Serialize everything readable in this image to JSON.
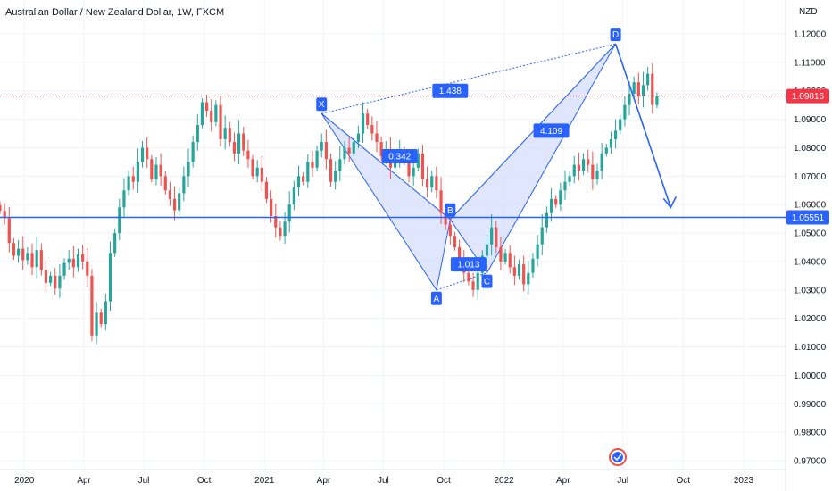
{
  "header": {
    "title": "Australian Dollar / New Zealand Dollar, 1W, FXCM"
  },
  "colors": {
    "up": "#26a69a",
    "down": "#ef5350",
    "line": "#2962ff",
    "pattern_fill": "#d4defc",
    "current": "#f23645",
    "grid": "#f0f3fa"
  },
  "chart_data": {
    "type": "candlestick",
    "title": "Australian Dollar / New Zealand Dollar, 1W, FXCM",
    "yunit": "NZD",
    "ylim": [
      0.967,
      1.127
    ],
    "yticks": [
      "1.12000",
      "1.11000",
      "1.10000",
      "1.09000",
      "1.08000",
      "1.07000",
      "1.06000",
      "1.05000",
      "1.04000",
      "1.03000",
      "1.02000",
      "1.01000",
      "1.00000",
      "0.99000",
      "0.98000",
      "0.97000"
    ],
    "xlim": [
      "2019-11-25",
      "2023-03-06"
    ],
    "xticks": [
      {
        "date": "2020-01-01",
        "label": "2020"
      },
      {
        "date": "2020-04-01",
        "label": "Apr"
      },
      {
        "date": "2020-07-01",
        "label": "Jul"
      },
      {
        "date": "2020-10-01",
        "label": "Oct"
      },
      {
        "date": "2021-01-01",
        "label": "2021"
      },
      {
        "date": "2021-04-01",
        "label": "Apr"
      },
      {
        "date": "2021-07-01",
        "label": "Jul"
      },
      {
        "date": "2021-10-01",
        "label": "Oct"
      },
      {
        "date": "2022-01-01",
        "label": "2022"
      },
      {
        "date": "2022-04-01",
        "label": "Apr"
      },
      {
        "date": "2022-07-01",
        "label": "Jul"
      },
      {
        "date": "2022-10-01",
        "label": "Oct"
      },
      {
        "date": "2023-01-01",
        "label": "2023"
      }
    ],
    "series_start": "2019-11-25",
    "closes": [
      1.0578,
      1.0552,
      1.0465,
      1.042,
      1.0445,
      1.0405,
      1.043,
      1.038,
      1.044,
      1.037,
      1.0325,
      1.035,
      1.0305,
      1.035,
      1.0395,
      1.041,
      1.038,
      1.0425,
      1.04,
      1.035,
      1.014,
      1.022,
      1.018,
      1.026,
      1.043,
      1.05,
      1.059,
      1.065,
      1.07,
      1.068,
      1.075,
      1.08,
      1.076,
      1.069,
      1.074,
      1.07,
      1.065,
      1.062,
      1.058,
      1.064,
      1.07,
      1.075,
      1.082,
      1.088,
      1.096,
      1.093,
      1.089,
      1.095,
      1.083,
      1.087,
      1.082,
      1.078,
      1.085,
      1.079,
      1.076,
      1.07,
      1.073,
      1.068,
      1.062,
      1.056,
      1.052,
      1.049,
      1.054,
      1.06,
      1.066,
      1.07,
      1.068,
      1.075,
      1.073,
      1.079,
      1.082,
      1.076,
      1.068,
      1.072,
      1.076,
      1.08,
      1.078,
      1.082,
      1.085,
      1.092,
      1.088,
      1.085,
      1.082,
      1.077,
      1.079,
      1.073,
      1.076,
      1.079,
      1.075,
      1.07,
      1.073,
      1.078,
      1.069,
      1.066,
      1.07,
      1.065,
      1.057,
      1.053,
      1.049,
      1.045,
      1.04,
      1.036,
      1.033,
      1.03,
      1.036,
      1.042,
      1.046,
      1.052,
      1.045,
      1.04,
      1.043,
      1.038,
      1.035,
      1.039,
      1.032,
      1.036,
      1.041,
      1.046,
      1.052,
      1.057,
      1.062,
      1.06,
      1.065,
      1.068,
      1.07,
      1.074,
      1.072,
      1.076,
      1.074,
      1.069,
      1.072,
      1.078,
      1.08,
      1.083,
      1.086,
      1.09,
      1.095,
      1.099,
      1.103,
      1.098,
      1.102,
      1.106,
      1.095,
      1.0981
    ],
    "pattern": [
      {
        "label": "X",
        "date": "2021-03-29",
        "price": 1.092
      },
      {
        "label": "A",
        "date": "2021-09-20",
        "price": 1.03
      },
      {
        "label": "B",
        "date": "2021-10-11",
        "price": 1.0548
      },
      {
        "label": "C",
        "date": "2021-12-06",
        "price": 1.036
      },
      {
        "label": "D",
        "date": "2022-06-20",
        "price": 1.1165
      }
    ],
    "ratios": [
      {
        "label": "0.342",
        "date": "2021-07-26",
        "price": 1.077
      },
      {
        "label": "1.013",
        "date": "2021-11-08",
        "price": 1.039
      },
      {
        "label": "4.109",
        "date": "2022-03-14",
        "price": 1.086
      },
      {
        "label": "1.438",
        "date": "2021-10-11",
        "price": 1.1
      }
    ],
    "horizontal_line": {
      "price": 1.05551,
      "label": "1.05551"
    },
    "current_price": {
      "price": 1.09816,
      "label": "1.09816"
    },
    "projection": {
      "from_date": "2022-06-20",
      "from_price": 1.1165,
      "to_date": "2022-09-12",
      "to_price": 1.059
    }
  }
}
